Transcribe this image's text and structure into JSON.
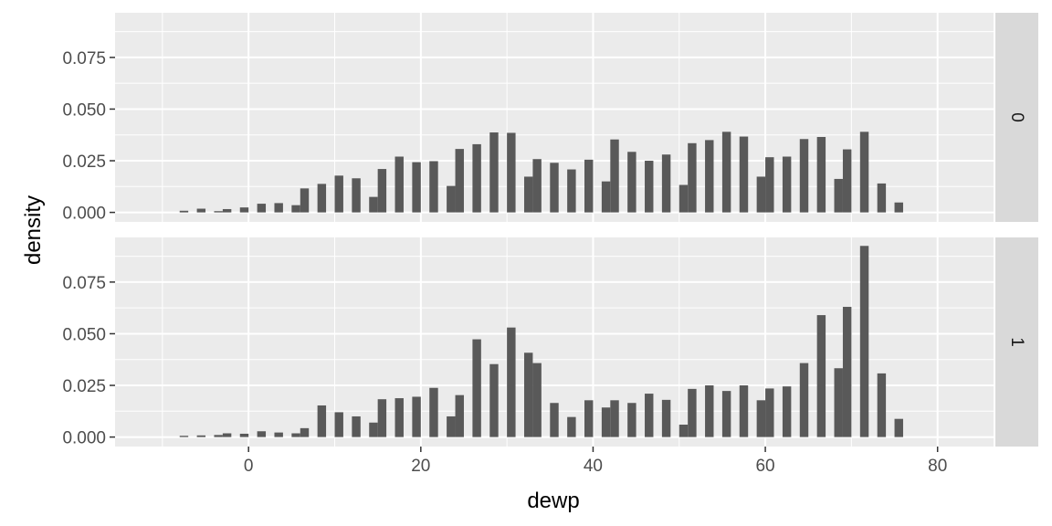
{
  "chart_data": {
    "type": "bar",
    "xlabel": "dewp",
    "ylabel": "density",
    "xlim": [
      -15.5,
      86.5
    ],
    "ylim": [
      -0.0046,
      0.0966
    ],
    "x_ticks": [
      0,
      20,
      40,
      60,
      80
    ],
    "x_tick_labels": [
      "0",
      "20",
      "40",
      "60",
      "80"
    ],
    "y_ticks": [
      0,
      0.025,
      0.05,
      0.075
    ],
    "y_tick_labels": [
      "0.000",
      "0.025",
      "0.050",
      "0.075"
    ],
    "bar_width": 1.0,
    "bar_color": "#595959",
    "panel_background": "#ebebeb",
    "strip_background": "#d9d9d9",
    "grid_color": "#ffffff",
    "grid": true,
    "facets": [
      {
        "strip": "0",
        "x": [
          -7.5,
          -5.5,
          -3.5,
          -2.5,
          -0.5,
          1.5,
          3.5,
          5.5,
          6.5,
          8.5,
          10.5,
          12.5,
          14.5,
          15.5,
          17.5,
          19.5,
          21.5,
          23.5,
          24.5,
          26.5,
          28.5,
          30.5,
          32.5,
          33.5,
          35.5,
          37.5,
          39.5,
          41.5,
          42.5,
          44.5,
          46.5,
          48.5,
          50.5,
          51.5,
          53.5,
          55.5,
          57.5,
          59.5,
          60.5,
          62.5,
          64.5,
          66.5,
          68.5,
          69.5,
          71.5,
          73.5,
          75.5
        ],
        "values": [
          0.0008,
          0.0018,
          0.0006,
          0.0016,
          0.0024,
          0.0042,
          0.0045,
          0.0035,
          0.0116,
          0.0138,
          0.0178,
          0.0165,
          0.0075,
          0.021,
          0.027,
          0.0243,
          0.0248,
          0.0128,
          0.0307,
          0.033,
          0.0387,
          0.0385,
          0.0173,
          0.0258,
          0.024,
          0.0208,
          0.0255,
          0.015,
          0.0353,
          0.0293,
          0.025,
          0.028,
          0.0133,
          0.0335,
          0.035,
          0.039,
          0.0367,
          0.0173,
          0.0267,
          0.027,
          0.0355,
          0.0365,
          0.0162,
          0.0305,
          0.039,
          0.014,
          0.0048
        ]
      },
      {
        "strip": "1",
        "x": [
          -7.5,
          -5.5,
          -3.5,
          -2.5,
          -0.5,
          1.5,
          3.5,
          5.5,
          6.5,
          8.5,
          10.5,
          12.5,
          14.5,
          15.5,
          17.5,
          19.5,
          21.5,
          23.5,
          24.5,
          26.5,
          28.5,
          30.5,
          32.5,
          33.5,
          35.5,
          37.5,
          39.5,
          41.5,
          42.5,
          44.5,
          46.5,
          48.5,
          50.5,
          51.5,
          53.5,
          55.5,
          57.5,
          59.5,
          60.5,
          62.5,
          64.5,
          66.5,
          68.5,
          69.5,
          71.5,
          73.5,
          75.5
        ],
        "values": [
          0.0006,
          0.0008,
          0.001,
          0.0018,
          0.0016,
          0.0028,
          0.0022,
          0.0018,
          0.0043,
          0.0153,
          0.012,
          0.01,
          0.007,
          0.0183,
          0.0188,
          0.0195,
          0.0238,
          0.01,
          0.0203,
          0.0473,
          0.0353,
          0.053,
          0.0408,
          0.0358,
          0.0165,
          0.0097,
          0.0178,
          0.0143,
          0.0178,
          0.0165,
          0.021,
          0.018,
          0.006,
          0.0233,
          0.025,
          0.0223,
          0.025,
          0.0178,
          0.0235,
          0.0245,
          0.0358,
          0.059,
          0.0333,
          0.063,
          0.0925,
          0.0308,
          0.0088
        ]
      }
    ]
  }
}
